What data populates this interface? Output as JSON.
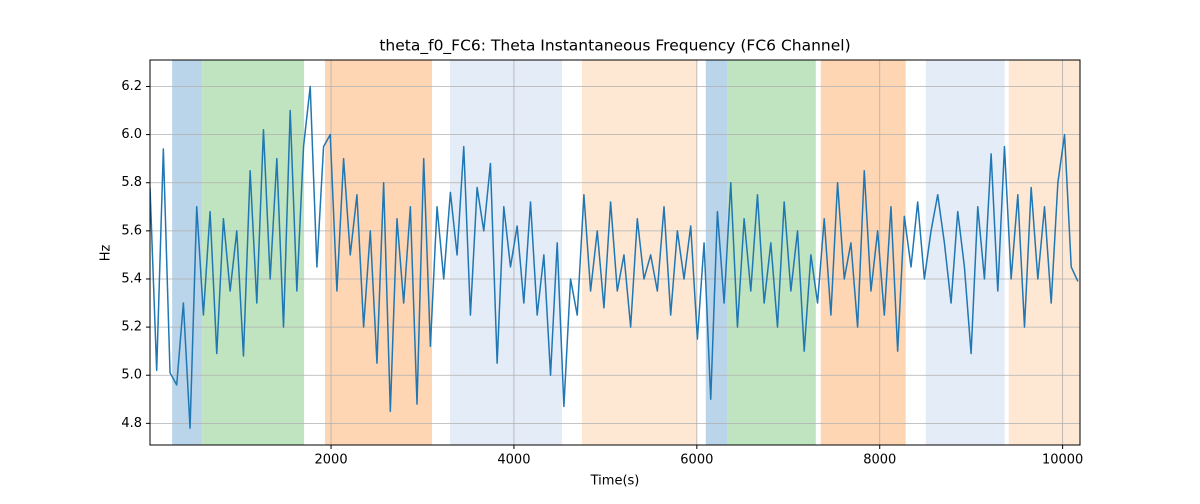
{
  "chart_data": {
    "type": "line",
    "title": "theta_f0_FC6: Theta Instantaneous Frequency (FC6 Channel)",
    "x_label": "Time(s)",
    "y_label": "Hz",
    "xlim": [
      20,
      10190
    ],
    "ylim": [
      4.71,
      6.31
    ],
    "xticks": [
      2000,
      4000,
      6000,
      8000,
      10000
    ],
    "yticks": [
      4.8,
      {
        "value": 5,
        "label": "5.0"
      },
      5.2,
      5.4,
      5.6,
      5.8,
      {
        "value": 6,
        "label": "6.0"
      },
      6.2
    ],
    "grid": true,
    "spans": [
      {
        "start": 262,
        "end": 590,
        "color": "#bad4e9"
      },
      {
        "start": 590,
        "end": 1705,
        "color": "#c0e4c0"
      },
      {
        "start": 1934,
        "end": 3104,
        "color": "#ffd6b3"
      },
      {
        "start": 3301,
        "end": 4525,
        "color": "#e4ecf7"
      },
      {
        "start": 4743,
        "end": 6000,
        "color": "#fee8d4"
      },
      {
        "start": 6098,
        "end": 6339,
        "color": "#bad4e9"
      },
      {
        "start": 6339,
        "end": 7301,
        "color": "#c0e4c0"
      },
      {
        "start": 7355,
        "end": 8284,
        "color": "#ffd6b3"
      },
      {
        "start": 8503,
        "end": 9366,
        "color": "#e4ecf7"
      },
      {
        "start": 9410,
        "end": 10190,
        "color": "#fee8d4"
      }
    ],
    "x": [
      20,
      93,
      166,
      239,
      312,
      385,
      458,
      531,
      604,
      677,
      750,
      823,
      896,
      969,
      1042,
      1115,
      1188,
      1261,
      1334,
      1407,
      1480,
      1553,
      1626,
      1699,
      1772,
      1845,
      1918,
      1991,
      2064,
      2137,
      2210,
      2283,
      2356,
      2429,
      2502,
      2575,
      2648,
      2721,
      2794,
      2867,
      2940,
      3013,
      3086,
      3159,
      3232,
      3305,
      3378,
      3451,
      3524,
      3597,
      3670,
      3743,
      3816,
      3889,
      3962,
      4035,
      4108,
      4181,
      4254,
      4327,
      4400,
      4473,
      4546,
      4619,
      4692,
      4765,
      4838,
      4911,
      4984,
      5057,
      5130,
      5203,
      5276,
      5349,
      5422,
      5495,
      5568,
      5641,
      5714,
      5787,
      5860,
      5933,
      6006,
      6079,
      6152,
      6225,
      6298,
      6371,
      6444,
      6517,
      6590,
      6663,
      6736,
      6809,
      6882,
      6955,
      7028,
      7101,
      7174,
      7247,
      7320,
      7393,
      7466,
      7539,
      7612,
      7685,
      7758,
      7831,
      7904,
      7977,
      8050,
      8123,
      8196,
      8269,
      8342,
      8415,
      8488,
      8561,
      8634,
      8707,
      8780,
      8853,
      8926,
      8999,
      9072,
      9145,
      9218,
      9291,
      9364,
      9437,
      9510,
      9583,
      9656,
      9729,
      9802,
      9875,
      9948,
      10021,
      10094,
      10167
    ],
    "series": [
      {
        "name": "theta_f0_FC6",
        "color": "#1f77b4",
        "values": [
          5.78,
          5.02,
          5.94,
          5.01,
          4.96,
          5.3,
          4.78,
          5.7,
          5.25,
          5.68,
          5.09,
          5.65,
          5.35,
          5.6,
          5.08,
          5.85,
          5.3,
          6.02,
          5.4,
          5.9,
          5.2,
          6.1,
          5.35,
          5.95,
          6.2,
          5.45,
          5.95,
          6.0,
          5.35,
          5.9,
          5.5,
          5.75,
          5.2,
          5.6,
          5.05,
          5.8,
          4.85,
          5.65,
          5.3,
          5.7,
          4.88,
          5.9,
          5.12,
          5.7,
          5.4,
          5.76,
          5.5,
          5.95,
          5.25,
          5.78,
          5.6,
          5.88,
          5.05,
          5.7,
          5.45,
          5.62,
          5.3,
          5.72,
          5.25,
          5.5,
          5.0,
          5.55,
          4.87,
          5.4,
          5.25,
          5.75,
          5.35,
          5.6,
          5.28,
          5.72,
          5.35,
          5.5,
          5.2,
          5.65,
          5.4,
          5.5,
          5.35,
          5.7,
          5.25,
          5.6,
          5.4,
          5.62,
          5.15,
          5.55,
          4.9,
          5.68,
          5.3,
          5.8,
          5.2,
          5.65,
          5.35,
          5.75,
          5.3,
          5.55,
          5.2,
          5.72,
          5.35,
          5.6,
          5.1,
          5.5,
          5.3,
          5.65,
          5.25,
          5.8,
          5.4,
          5.55,
          5.2,
          5.85,
          5.35,
          5.6,
          5.25,
          5.7,
          5.1,
          5.66,
          5.45,
          5.72,
          5.4,
          5.6,
          5.75,
          5.55,
          5.3,
          5.68,
          5.45,
          5.09,
          5.7,
          5.4,
          5.92,
          5.35,
          5.95,
          5.4,
          5.75,
          5.2,
          5.78,
          5.4,
          5.7,
          5.3,
          5.8,
          6.0,
          5.45,
          5.39
        ]
      }
    ]
  }
}
